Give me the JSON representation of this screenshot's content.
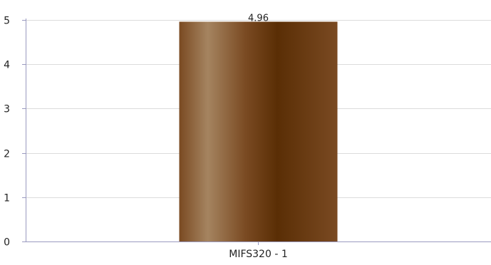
{
  "chart_data": {
    "type": "bar",
    "categories": [
      "MIFS320 - 1"
    ],
    "values": [
      4.96
    ],
    "data_labels": [
      "4.96"
    ],
    "ylim": [
      0,
      5
    ],
    "yticks": [
      "0",
      "1",
      "2",
      "3",
      "4",
      "5"
    ],
    "grid": true,
    "legend": "none",
    "colors": {
      "bar_dark": "#5a2e05",
      "bar_mid": "#7a4a22",
      "bar_light": "#a58460",
      "grid": "#dcdcdc",
      "axis": "#9a9ac0",
      "text": "#222222"
    }
  }
}
